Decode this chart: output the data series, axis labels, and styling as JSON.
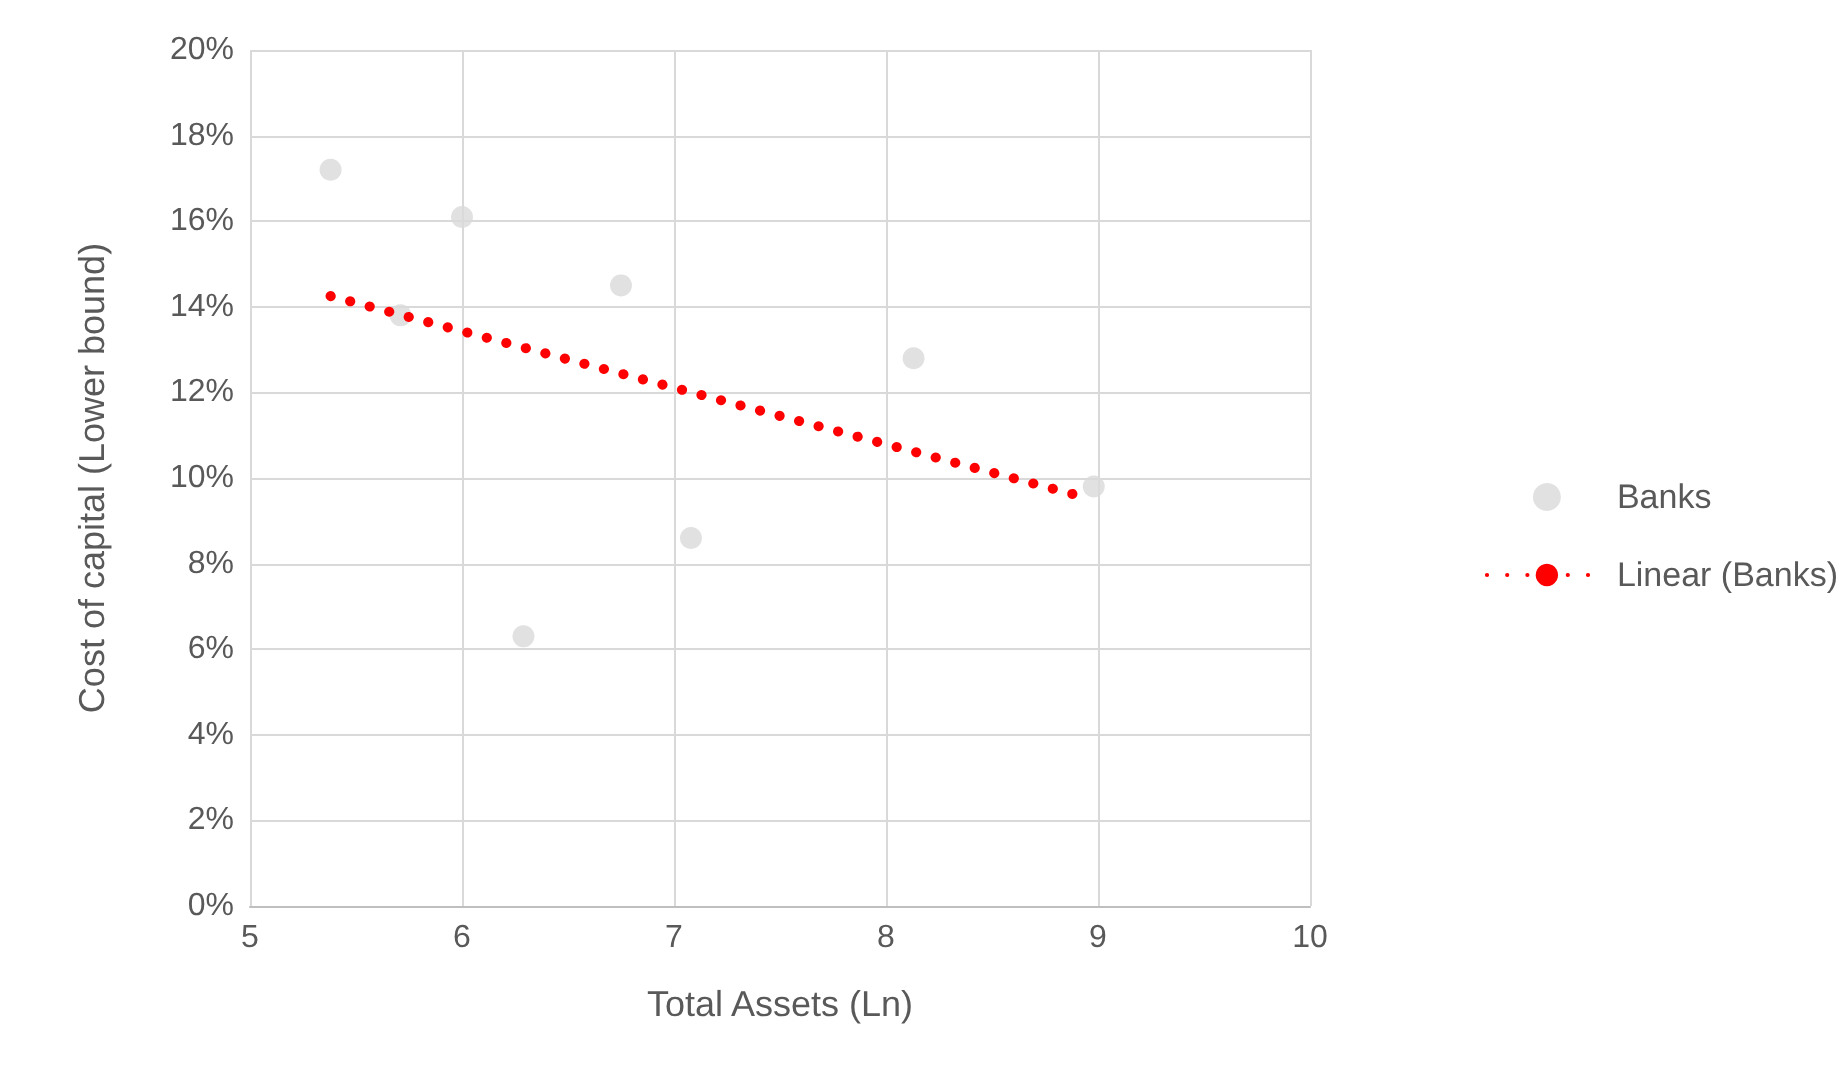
{
  "chart_data": {
    "type": "scatter",
    "xlabel": "Total Assets (Ln)",
    "ylabel": "Cost of capital (Lower bound)",
    "xlim": [
      5,
      10
    ],
    "xticks": [
      5,
      6,
      7,
      8,
      9,
      10
    ],
    "ylim": [
      0,
      20
    ],
    "yticks": [
      {
        "value": 0,
        "label": "0%"
      },
      {
        "value": 2,
        "label": "2%"
      },
      {
        "value": 4,
        "label": "4%"
      },
      {
        "value": 6,
        "label": "6%"
      },
      {
        "value": 8,
        "label": "8%"
      },
      {
        "value": 10,
        "label": "10%"
      },
      {
        "value": 12,
        "label": "12%"
      },
      {
        "value": 14,
        "label": "14%"
      },
      {
        "value": 16,
        "label": "16%"
      },
      {
        "value": 18,
        "label": "18%"
      },
      {
        "value": 20,
        "label": "20%"
      }
    ],
    "grid": true,
    "legend": "right",
    "series": [
      {
        "name": "Banks",
        "marker": "circle",
        "color": "#d9d9d9",
        "x": [
          5.38,
          5.71,
          6.0,
          6.29,
          6.75,
          7.08,
          8.13,
          8.98
        ],
        "values": [
          17.2,
          13.8,
          16.1,
          6.3,
          14.5,
          8.6,
          12.8,
          9.8
        ]
      },
      {
        "name": "Linear (Banks)",
        "type": "line",
        "marker": "none",
        "line_style": "dotted",
        "color": "#ff0000",
        "x": [
          5.38,
          8.9
        ],
        "values": [
          14.25,
          9.6
        ]
      }
    ]
  }
}
